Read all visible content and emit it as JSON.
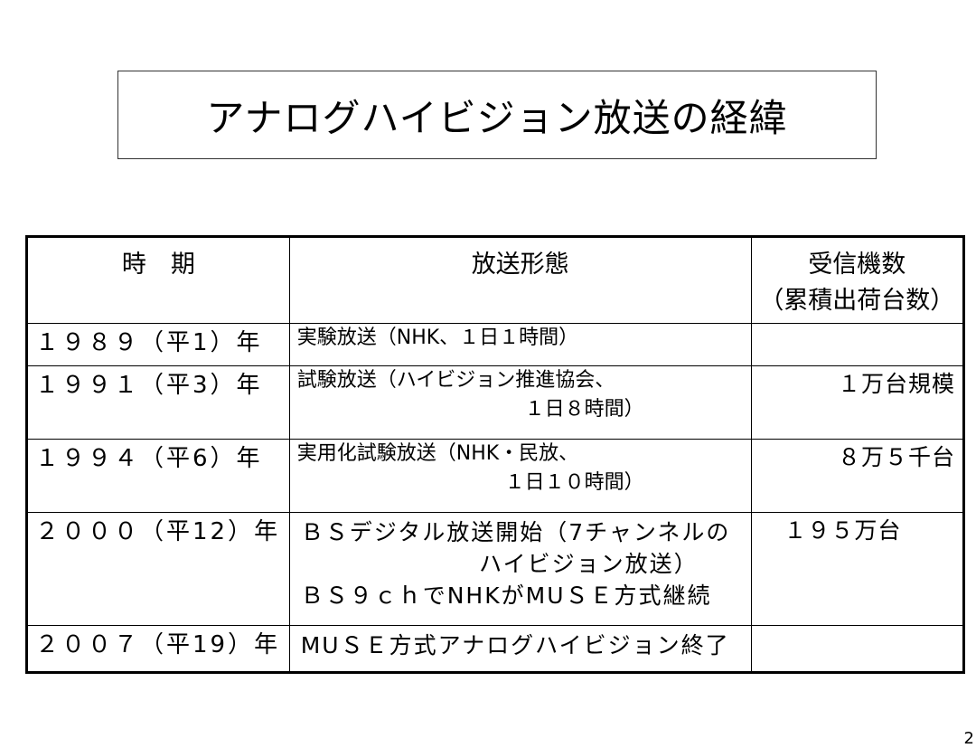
{
  "title": "アナログハイビジョン放送の経緯",
  "table": {
    "headers": {
      "period": "時　期",
      "form": "放送形態",
      "units_line1": "受信機数",
      "units_line2": "（累積出荷台数）"
    },
    "rows": [
      {
        "period": "１９８９（平1）年",
        "form_lines": [
          "実験放送（NHK、１日１時間）"
        ],
        "units": ""
      },
      {
        "period": "１９９１（平3）年",
        "form_lines": [
          "試験放送（ハイビジョン推進協会、",
          "１日８時間）"
        ],
        "units": "１万台規模"
      },
      {
        "period": "１９９４（平6）年",
        "form_lines": [
          "実用化試験放送（NHK・民放、",
          "１日１０時間）"
        ],
        "units": "８万５千台"
      },
      {
        "period": "２０００（平12）年",
        "form_lines": [
          "ＢＳデジタル放送開始（7チャンネルの",
          "ハイビジョン放送）",
          "ＢＳ９ｃｈでNHKがMUＳＥ方式継続"
        ],
        "units": "１９５万台"
      },
      {
        "period": "２００７（平19）年",
        "form_lines": [
          "MUＳＥ方式アナログハイビジョン終了"
        ],
        "units": ""
      }
    ]
  },
  "page_number": "2"
}
